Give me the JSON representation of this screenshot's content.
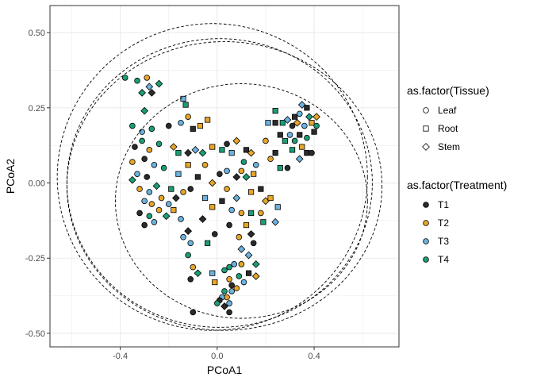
{
  "chart_data": {
    "type": "scatter",
    "xlabel": "PCoA1",
    "ylabel": "PCoA2",
    "xlim": [
      -0.69,
      0.75
    ],
    "ylim": [
      -0.545,
      0.59
    ],
    "x_ticks": [
      "-0.4",
      "0.0",
      "0.4"
    ],
    "x_tick_values": [
      -0.4,
      0.0,
      0.4
    ],
    "y_ticks": [
      "0.50",
      "0.25",
      "0.00",
      "-0.25",
      "-0.50"
    ],
    "y_tick_values": [
      0.5,
      0.25,
      0.0,
      -0.25,
      -0.5
    ],
    "grid": true,
    "legend_position": "right",
    "legend_tissue": {
      "title": "as.factor(Tissue)",
      "items": [
        {
          "label": "Leaf",
          "shape": "circle"
        },
        {
          "label": "Root",
          "shape": "square"
        },
        {
          "label": "Stem",
          "shape": "diamond"
        }
      ]
    },
    "legend_treatment": {
      "title": "as.factor(Treatment)",
      "items": [
        {
          "label": "T1",
          "color": "#2b2b2b"
        },
        {
          "label": "T2",
          "color": "#e6a62a"
        },
        {
          "label": "T3",
          "color": "#6bb3de"
        },
        {
          "label": "T4",
          "color": "#1b9e77"
        }
      ]
    },
    "ellipses": [
      {
        "cx": -0.02,
        "cy": 0.02,
        "rx": 0.64,
        "ry": 0.51
      },
      {
        "cx": 0.01,
        "cy": 0.0,
        "rx": 0.63,
        "ry": 0.48
      },
      {
        "cx": 0.03,
        "cy": -0.01,
        "rx": 0.65,
        "ry": 0.48
      },
      {
        "cx": 0.1,
        "cy": -0.06,
        "rx": 0.52,
        "ry": 0.39
      }
    ],
    "points": [
      {
        "x": -0.38,
        "y": 0.35,
        "t": 3,
        "s": 0
      },
      {
        "x": -0.33,
        "y": 0.34,
        "t": 3,
        "s": 0
      },
      {
        "x": -0.29,
        "y": 0.35,
        "t": 1,
        "s": 0
      },
      {
        "x": -0.31,
        "y": 0.3,
        "t": 3,
        "s": 2
      },
      {
        "x": -0.28,
        "y": 0.32,
        "t": 2,
        "s": 2
      },
      {
        "x": -0.3,
        "y": 0.24,
        "t": 3,
        "s": 2
      },
      {
        "x": -0.24,
        "y": 0.33,
        "t": 3,
        "s": 2
      },
      {
        "x": -0.27,
        "y": 0.3,
        "t": 0,
        "s": 2
      },
      {
        "x": -0.35,
        "y": 0.19,
        "t": 3,
        "s": 0
      },
      {
        "x": -0.31,
        "y": 0.17,
        "t": 2,
        "s": 0
      },
      {
        "x": -0.27,
        "y": 0.18,
        "t": 3,
        "s": 0
      },
      {
        "x": -0.2,
        "y": 0.19,
        "t": 0,
        "s": 0
      },
      {
        "x": -0.14,
        "y": 0.28,
        "t": 2,
        "s": 1
      },
      {
        "x": -0.13,
        "y": 0.26,
        "t": 3,
        "s": 1
      },
      {
        "x": -0.12,
        "y": 0.22,
        "t": 1,
        "s": 0
      },
      {
        "x": -0.15,
        "y": 0.2,
        "t": 2,
        "s": 0
      },
      {
        "x": -0.1,
        "y": 0.18,
        "t": 0,
        "s": 1
      },
      {
        "x": -0.07,
        "y": 0.19,
        "t": 1,
        "s": 1
      },
      {
        "x": -0.04,
        "y": 0.21,
        "t": 1,
        "s": 1
      },
      {
        "x": -0.12,
        "y": 0.1,
        "t": 0,
        "s": 2
      },
      {
        "x": -0.09,
        "y": 0.11,
        "t": 2,
        "s": 2
      },
      {
        "x": -0.06,
        "y": 0.1,
        "t": 3,
        "s": 2
      },
      {
        "x": -0.16,
        "y": 0.1,
        "t": 3,
        "s": 1
      },
      {
        "x": -0.18,
        "y": 0.12,
        "t": 1,
        "s": 2
      },
      {
        "x": -0.34,
        "y": 0.12,
        "t": 0,
        "s": 0
      },
      {
        "x": -0.31,
        "y": 0.14,
        "t": 3,
        "s": 0
      },
      {
        "x": -0.28,
        "y": 0.11,
        "t": 1,
        "s": 0
      },
      {
        "x": -0.24,
        "y": 0.13,
        "t": 3,
        "s": 0
      },
      {
        "x": -0.3,
        "y": 0.08,
        "t": 0,
        "s": 0
      },
      {
        "x": -0.26,
        "y": 0.06,
        "t": 2,
        "s": 0
      },
      {
        "x": -0.22,
        "y": 0.05,
        "t": 3,
        "s": 0
      },
      {
        "x": -0.35,
        "y": 0.07,
        "t": 1,
        "s": 0
      },
      {
        "x": -0.33,
        "y": 0.03,
        "t": 2,
        "s": 0
      },
      {
        "x": -0.29,
        "y": 0.02,
        "t": 0,
        "s": 0
      },
      {
        "x": -0.35,
        "y": 0.01,
        "t": 3,
        "s": 2
      },
      {
        "x": -0.32,
        "y": -0.02,
        "t": 1,
        "s": 0
      },
      {
        "x": -0.28,
        "y": -0.03,
        "t": 2,
        "s": 0
      },
      {
        "x": -0.25,
        "y": -0.01,
        "t": 3,
        "s": 2
      },
      {
        "x": -0.3,
        "y": -0.06,
        "t": 2,
        "s": 0
      },
      {
        "x": -0.27,
        "y": -0.07,
        "t": 1,
        "s": 0
      },
      {
        "x": -0.23,
        "y": -0.05,
        "t": 1,
        "s": 0
      },
      {
        "x": -0.32,
        "y": -0.1,
        "t": 0,
        "s": 0
      },
      {
        "x": -0.28,
        "y": -0.11,
        "t": 3,
        "s": 0
      },
      {
        "x": -0.24,
        "y": -0.09,
        "t": 1,
        "s": 0
      },
      {
        "x": -0.2,
        "y": -0.07,
        "t": 2,
        "s": 0
      },
      {
        "x": -0.21,
        "y": -0.11,
        "t": 3,
        "s": 2
      },
      {
        "x": -0.17,
        "y": -0.05,
        "t": 0,
        "s": 2
      },
      {
        "x": -0.14,
        "y": -0.03,
        "t": 1,
        "s": 0
      },
      {
        "x": -0.11,
        "y": -0.02,
        "t": 0,
        "s": 0
      },
      {
        "x": -0.19,
        "y": -0.02,
        "t": 3,
        "s": 1
      },
      {
        "x": -0.16,
        "y": 0.03,
        "t": 2,
        "s": 1
      },
      {
        "x": -0.12,
        "y": 0.06,
        "t": 1,
        "s": 1
      },
      {
        "x": -0.26,
        "y": -0.13,
        "t": 2,
        "s": 0
      },
      {
        "x": -0.3,
        "y": -0.14,
        "t": 0,
        "s": 0
      },
      {
        "x": -0.18,
        "y": -0.09,
        "t": 1,
        "s": 1
      },
      {
        "x": -0.15,
        "y": -0.12,
        "t": 2,
        "s": 0
      },
      {
        "x": -0.12,
        "y": -0.16,
        "t": 0,
        "s": 2
      },
      {
        "x": -0.14,
        "y": -0.18,
        "t": 2,
        "s": 0
      },
      {
        "x": -0.11,
        "y": -0.2,
        "t": 2,
        "s": 0
      },
      {
        "x": -0.12,
        "y": -0.24,
        "t": 3,
        "s": 0
      },
      {
        "x": -0.1,
        "y": -0.28,
        "t": 1,
        "s": 0
      },
      {
        "x": -0.11,
        "y": -0.32,
        "t": 0,
        "s": 0
      },
      {
        "x": -0.08,
        "y": -0.3,
        "t": 3,
        "s": 2
      },
      {
        "x": -0.1,
        "y": -0.43,
        "t": 0,
        "s": 0
      },
      {
        "x": -0.05,
        "y": -0.05,
        "t": 2,
        "s": 1
      },
      {
        "x": -0.02,
        "y": -0.08,
        "t": 1,
        "s": 1
      },
      {
        "x": -0.06,
        "y": -0.12,
        "t": 0,
        "s": 2
      },
      {
        "x": -0.02,
        "y": 0.0,
        "t": 1,
        "s": 2
      },
      {
        "x": -0.08,
        "y": 0.02,
        "t": 0,
        "s": 1
      },
      {
        "x": -0.05,
        "y": 0.06,
        "t": 1,
        "s": 0
      },
      {
        "x": -0.02,
        "y": 0.12,
        "t": 1,
        "s": 1
      },
      {
        "x": 0.02,
        "y": 0.11,
        "t": 3,
        "s": 1
      },
      {
        "x": 0.04,
        "y": 0.13,
        "t": 0,
        "s": 0
      },
      {
        "x": 0.06,
        "y": 0.1,
        "t": 2,
        "s": 1
      },
      {
        "x": 0.08,
        "y": 0.14,
        "t": 1,
        "s": 2
      },
      {
        "x": 0.12,
        "y": 0.11,
        "t": 0,
        "s": 1
      },
      {
        "x": 0.11,
        "y": 0.07,
        "t": 3,
        "s": 0
      },
      {
        "x": 0.14,
        "y": 0.1,
        "t": 1,
        "s": 2
      },
      {
        "x": 0.16,
        "y": 0.06,
        "t": 2,
        "s": 0
      },
      {
        "x": 0.1,
        "y": 0.04,
        "t": 1,
        "s": 0
      },
      {
        "x": 0.04,
        "y": 0.04,
        "t": 2,
        "s": 0
      },
      {
        "x": 0.01,
        "y": 0.03,
        "t": 0,
        "s": 0
      },
      {
        "x": 0.08,
        "y": 0.02,
        "t": 0,
        "s": 2
      },
      {
        "x": 0.12,
        "y": 0.02,
        "t": 3,
        "s": 2
      },
      {
        "x": 0.15,
        "y": 0.03,
        "t": 1,
        "s": 1
      },
      {
        "x": 0.04,
        "y": -0.02,
        "t": 1,
        "s": 0
      },
      {
        "x": 0.08,
        "y": -0.05,
        "t": 2,
        "s": 2
      },
      {
        "x": 0.14,
        "y": -0.03,
        "t": 1,
        "s": 1
      },
      {
        "x": 0.18,
        "y": -0.02,
        "t": 0,
        "s": 1
      },
      {
        "x": 0.2,
        "y": -0.06,
        "t": 1,
        "s": 2
      },
      {
        "x": 0.1,
        "y": -0.1,
        "t": 1,
        "s": 0
      },
      {
        "x": 0.14,
        "y": -0.1,
        "t": 3,
        "s": 1
      },
      {
        "x": 0.18,
        "y": -0.1,
        "t": 1,
        "s": 0
      },
      {
        "x": 0.06,
        "y": -0.09,
        "t": 2,
        "s": 0
      },
      {
        "x": 0.02,
        "y": -0.06,
        "t": 0,
        "s": 1
      },
      {
        "x": 0.05,
        "y": -0.14,
        "t": 0,
        "s": 0
      },
      {
        "x": 0.09,
        "y": -0.18,
        "t": 1,
        "s": 0
      },
      {
        "x": 0.12,
        "y": -0.14,
        "t": 1,
        "s": 1
      },
      {
        "x": 0.15,
        "y": -0.2,
        "t": 0,
        "s": 0
      },
      {
        "x": 0.1,
        "y": -0.22,
        "t": 2,
        "s": 2
      },
      {
        "x": 0.13,
        "y": -0.24,
        "t": 2,
        "s": 2
      },
      {
        "x": 0.16,
        "y": -0.27,
        "t": 3,
        "s": 2
      },
      {
        "x": 0.13,
        "y": -0.3,
        "t": 0,
        "s": 1
      },
      {
        "x": 0.16,
        "y": -0.31,
        "t": 1,
        "s": 2
      },
      {
        "x": 0.1,
        "y": -0.27,
        "t": 1,
        "s": 0
      },
      {
        "x": 0.07,
        "y": -0.27,
        "t": 2,
        "s": 0
      },
      {
        "x": 0.05,
        "y": -0.28,
        "t": 3,
        "s": 0
      },
      {
        "x": 0.03,
        "y": -0.29,
        "t": 3,
        "s": 0
      },
      {
        "x": 0.05,
        "y": -0.32,
        "t": 1,
        "s": 0
      },
      {
        "x": 0.09,
        "y": -0.31,
        "t": 3,
        "s": 0
      },
      {
        "x": 0.11,
        "y": -0.33,
        "t": 2,
        "s": 0
      },
      {
        "x": -0.01,
        "y": -0.33,
        "t": 1,
        "s": 1
      },
      {
        "x": 0.06,
        "y": -0.34,
        "t": 0,
        "s": 0
      },
      {
        "x": 0.03,
        "y": -0.36,
        "t": 3,
        "s": 0
      },
      {
        "x": 0.06,
        "y": -0.36,
        "t": 2,
        "s": 0
      },
      {
        "x": 0.04,
        "y": -0.38,
        "t": 1,
        "s": 0
      },
      {
        "x": 0.02,
        "y": -0.38,
        "t": 2,
        "s": 0
      },
      {
        "x": 0.08,
        "y": -0.35,
        "t": 1,
        "s": 0
      },
      {
        "x": 0.01,
        "y": -0.39,
        "t": 0,
        "s": 0
      },
      {
        "x": 0.05,
        "y": -0.4,
        "t": 2,
        "s": 0
      },
      {
        "x": 0.03,
        "y": -0.41,
        "t": 0,
        "s": 2
      },
      {
        "x": 0.05,
        "y": -0.43,
        "t": 0,
        "s": 0
      },
      {
        "x": 0.0,
        "y": -0.4,
        "t": 3,
        "s": 0
      },
      {
        "x": 0.2,
        "y": 0.14,
        "t": 1,
        "s": 0
      },
      {
        "x": 0.21,
        "y": 0.2,
        "t": 2,
        "s": 1
      },
      {
        "x": 0.24,
        "y": 0.2,
        "t": 0,
        "s": 1
      },
      {
        "x": 0.24,
        "y": 0.24,
        "t": 3,
        "s": 1
      },
      {
        "x": 0.26,
        "y": 0.16,
        "t": 0,
        "s": 1
      },
      {
        "x": 0.27,
        "y": 0.2,
        "t": 3,
        "s": 1
      },
      {
        "x": 0.28,
        "y": 0.14,
        "t": 3,
        "s": 1
      },
      {
        "x": 0.29,
        "y": 0.21,
        "t": 2,
        "s": 2
      },
      {
        "x": 0.31,
        "y": 0.19,
        "t": 0,
        "s": 0
      },
      {
        "x": 0.32,
        "y": 0.22,
        "t": 0,
        "s": 1
      },
      {
        "x": 0.3,
        "y": 0.16,
        "t": 2,
        "s": 0
      },
      {
        "x": 0.33,
        "y": 0.2,
        "t": 1,
        "s": 2
      },
      {
        "x": 0.34,
        "y": 0.23,
        "t": 2,
        "s": 0
      },
      {
        "x": 0.35,
        "y": 0.26,
        "t": 2,
        "s": 2
      },
      {
        "x": 0.37,
        "y": 0.25,
        "t": 0,
        "s": 1
      },
      {
        "x": 0.38,
        "y": 0.22,
        "t": 3,
        "s": 2
      },
      {
        "x": 0.36,
        "y": 0.19,
        "t": 2,
        "s": 0
      },
      {
        "x": 0.34,
        "y": 0.16,
        "t": 0,
        "s": 1
      },
      {
        "x": 0.32,
        "y": 0.14,
        "t": 3,
        "s": 0
      },
      {
        "x": 0.35,
        "y": 0.12,
        "t": 1,
        "s": 1
      },
      {
        "x": 0.37,
        "y": 0.15,
        "t": 3,
        "s": 0
      },
      {
        "x": 0.39,
        "y": 0.2,
        "t": 1,
        "s": 1
      },
      {
        "x": 0.4,
        "y": 0.17,
        "t": 0,
        "s": 1
      },
      {
        "x": 0.41,
        "y": 0.22,
        "t": 1,
        "s": 2
      },
      {
        "x": 0.41,
        "y": 0.19,
        "t": 3,
        "s": 0
      },
      {
        "x": 0.37,
        "y": 0.1,
        "t": 0,
        "s": 1
      },
      {
        "x": 0.34,
        "y": 0.08,
        "t": 2,
        "s": 2
      },
      {
        "x": 0.31,
        "y": 0.11,
        "t": 3,
        "s": 1
      },
      {
        "x": 0.29,
        "y": 0.05,
        "t": 0,
        "s": 0
      },
      {
        "x": 0.24,
        "y": 0.1,
        "t": 0,
        "s": 1
      },
      {
        "x": 0.26,
        "y": 0.05,
        "t": 3,
        "s": 1
      },
      {
        "x": 0.22,
        "y": 0.08,
        "t": 1,
        "s": 0
      },
      {
        "x": 0.39,
        "y": 0.1,
        "t": 0,
        "s": 0
      },
      {
        "x": 0.22,
        "y": -0.05,
        "t": 1,
        "s": 1
      },
      {
        "x": 0.25,
        "y": -0.08,
        "t": 2,
        "s": 1
      },
      {
        "x": 0.24,
        "y": -0.13,
        "t": 2,
        "s": 2
      },
      {
        "x": 0.19,
        "y": -0.13,
        "t": 3,
        "s": 1
      },
      {
        "x": 0.14,
        "y": -0.17,
        "t": 0,
        "s": 2
      },
      {
        "x": -0.01,
        "y": -0.17,
        "t": 0,
        "s": 0
      },
      {
        "x": -0.04,
        "y": -0.2,
        "t": 3,
        "s": 1
      },
      {
        "x": -0.02,
        "y": -0.3,
        "t": 2,
        "s": 1
      }
    ]
  }
}
